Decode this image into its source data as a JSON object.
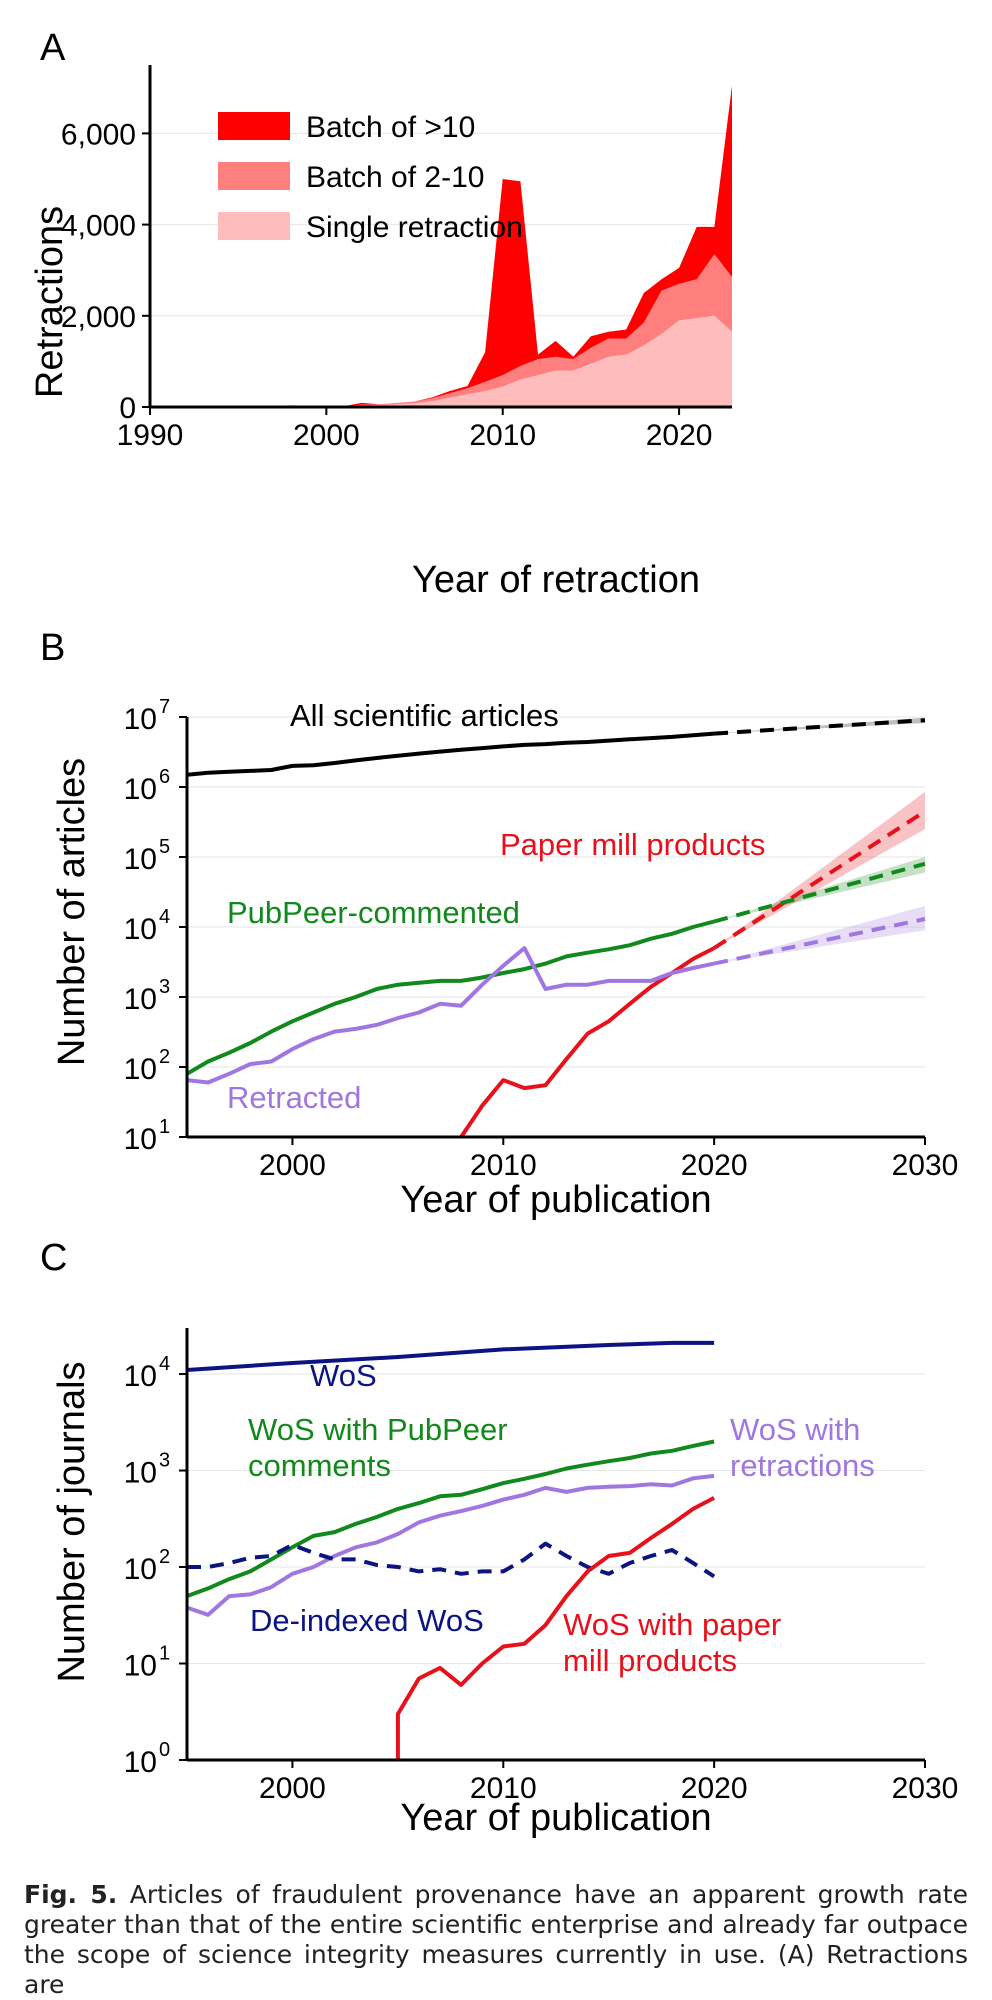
{
  "chart_data": [
    {
      "type": "area",
      "panel_label": "A",
      "stacked": true,
      "xlabel": "Year of retraction",
      "ylabel": "Retractions",
      "xlim": [
        1990,
        2023
      ],
      "ylim": [
        0,
        7500
      ],
      "xticks": [
        1990,
        2000,
        2010,
        2020
      ],
      "xtick_labels": [
        "1990",
        "2000",
        "2010",
        "2020"
      ],
      "yticks": [
        0,
        2000,
        4000,
        6000
      ],
      "ytick_labels": [
        "0",
        "2,000",
        "4,000",
        "6,000"
      ],
      "grid": "horizontal",
      "legend_position": "top-left",
      "x": [
        1990,
        1991,
        1992,
        1993,
        1994,
        1995,
        1996,
        1997,
        1998,
        1999,
        2000,
        2001,
        2002,
        2003,
        2004,
        2005,
        2006,
        2007,
        2008,
        2009,
        2010,
        2011,
        2012,
        2013,
        2014,
        2015,
        2016,
        2017,
        2018,
        2019,
        2020,
        2021,
        2022,
        2023
      ],
      "series": [
        {
          "name": "Single retraction",
          "color": "#ffbcbc",
          "values": [
            5,
            5,
            5,
            5,
            5,
            10,
            10,
            10,
            15,
            10,
            10,
            10,
            30,
            40,
            60,
            80,
            130,
            200,
            280,
            350,
            450,
            600,
            700,
            800,
            800,
            950,
            1100,
            1150,
            1350,
            1600,
            1900,
            1950,
            2000,
            1650
          ]
        },
        {
          "name": "Batch of 2-10",
          "color": "#ff7f7f",
          "values": [
            2,
            2,
            2,
            2,
            2,
            5,
            5,
            5,
            10,
            5,
            5,
            5,
            20,
            20,
            30,
            40,
            60,
            100,
            130,
            200,
            250,
            300,
            350,
            300,
            250,
            350,
            400,
            350,
            500,
            950,
            800,
            850,
            1350,
            1200
          ]
        },
        {
          "name": "Batch of >10",
          "color": "#ff0000",
          "values": [
            0,
            0,
            0,
            0,
            0,
            0,
            0,
            5,
            10,
            5,
            0,
            0,
            40,
            0,
            0,
            0,
            20,
            50,
            50,
            650,
            4300,
            4050,
            100,
            350,
            50,
            250,
            150,
            200,
            650,
            250,
            350,
            1150,
            600,
            4200
          ]
        }
      ]
    },
    {
      "type": "line",
      "panel_label": "B",
      "log_y": true,
      "xlabel": "Year of publication",
      "ylabel": "Number of articles",
      "xlim": [
        1995,
        2030
      ],
      "ylim": [
        10,
        10000000
      ],
      "xticks": [
        2000,
        2010,
        2020,
        2030
      ],
      "xtick_labels": [
        "2000",
        "2010",
        "2020",
        "2030"
      ],
      "ytick_base": "10",
      "ytick_exponents": [
        "1",
        "2",
        "3",
        "4",
        "5",
        "6",
        "7"
      ],
      "grid": "horizontal",
      "series": [
        {
          "name": "All scientific articles",
          "color": "#000000",
          "x": [
            1995,
            1996,
            1997,
            1998,
            1999,
            2000,
            2001,
            2002,
            2003,
            2004,
            2005,
            2006,
            2007,
            2008,
            2009,
            2010,
            2011,
            2012,
            2013,
            2014,
            2015,
            2016,
            2017,
            2018,
            2019,
            2020
          ],
          "values": [
            1500000,
            1600000,
            1650000,
            1700000,
            1750000,
            2000000,
            2050000,
            2200000,
            2400000,
            2600000,
            2800000,
            3000000,
            3200000,
            3400000,
            3600000,
            3800000,
            4000000,
            4100000,
            4300000,
            4400000,
            4600000,
            4800000,
            5000000,
            5200000,
            5500000,
            5800000
          ],
          "projection": {
            "x": [
              2020,
              2030
            ],
            "values": [
              5800000,
              9000000
            ],
            "low": [
              5800000,
              8200000
            ],
            "high": [
              5800000,
              9800000
            ]
          }
        },
        {
          "name": "Paper mill products",
          "color": "#e8101a",
          "x": [
            2008,
            2009,
            2010,
            2011,
            2012,
            2013,
            2014,
            2015,
            2016,
            2017,
            2018,
            2019,
            2020
          ],
          "values": [
            10,
            28,
            65,
            50,
            55,
            130,
            300,
            450,
            800,
            1400,
            2200,
            3500,
            5000
          ],
          "projection": {
            "x": [
              2020,
              2030
            ],
            "values": [
              5000,
              450000
            ],
            "low": [
              5000,
              250000
            ],
            "high": [
              5000,
              850000
            ]
          }
        },
        {
          "name": "PubPeer-commented",
          "color": "#12891c",
          "x": [
            1995,
            1996,
            1997,
            1998,
            1999,
            2000,
            2001,
            2002,
            2003,
            2004,
            2005,
            2006,
            2007,
            2008,
            2009,
            2010,
            2011,
            2012,
            2013,
            2014,
            2015,
            2016,
            2017,
            2018,
            2019,
            2020
          ],
          "values": [
            80,
            120,
            160,
            220,
            320,
            450,
            600,
            800,
            1000,
            1300,
            1500,
            1600,
            1700,
            1700,
            1900,
            2200,
            2500,
            3000,
            3800,
            4300,
            4800,
            5500,
            6800,
            8000,
            10000,
            12000
          ],
          "projection": {
            "x": [
              2020,
              2030
            ],
            "values": [
              12000,
              80000
            ],
            "low": [
              12000,
              60000
            ],
            "high": [
              12000,
              100000
            ]
          }
        },
        {
          "name": "Retracted",
          "color": "#a077e0",
          "x": [
            1995,
            1996,
            1997,
            1998,
            1999,
            2000,
            2001,
            2002,
            2003,
            2004,
            2005,
            2006,
            2007,
            2008,
            2009,
            2010,
            2011,
            2012,
            2013,
            2014,
            2015,
            2016,
            2017,
            2018,
            2019,
            2020
          ],
          "values": [
            65,
            60,
            80,
            110,
            120,
            180,
            250,
            320,
            350,
            400,
            500,
            600,
            800,
            750,
            1500,
            2800,
            5000,
            1300,
            1500,
            1500,
            1700,
            1700,
            1700,
            2200,
            2600,
            3000
          ],
          "projection": {
            "x": [
              2020,
              2030
            ],
            "values": [
              3000,
              13000
            ],
            "low": [
              3000,
              9000
            ],
            "high": [
              3000,
              20000
            ]
          }
        }
      ],
      "annotations": [
        "All scientific articles",
        "Paper mill products",
        "PubPeer-commented",
        "Retracted"
      ]
    },
    {
      "type": "line",
      "panel_label": "C",
      "log_y": true,
      "xlabel": "Year of publication",
      "ylabel": "Number of journals",
      "xlim": [
        1995,
        2030
      ],
      "ylim": [
        1,
        30000
      ],
      "xticks": [
        2000,
        2010,
        2020,
        2030
      ],
      "xtick_labels": [
        "2000",
        "2010",
        "2020",
        "2030"
      ],
      "ytick_base": "10",
      "ytick_exponents": [
        "0",
        "1",
        "2",
        "3",
        "4"
      ],
      "grid": "horizontal",
      "series": [
        {
          "name": "WoS",
          "color": "#0b1480",
          "dash": false,
          "x": [
            1995,
            2000,
            2005,
            2010,
            2015,
            2018,
            2020
          ],
          "values": [
            11000,
            13000,
            15000,
            18000,
            20000,
            21000,
            21000
          ]
        },
        {
          "name": "WoS with PubPeer comments",
          "color": "#12891c",
          "dash": false,
          "x": [
            1995,
            1996,
            1997,
            1998,
            1999,
            2000,
            2001,
            2002,
            2003,
            2004,
            2005,
            2006,
            2007,
            2008,
            2009,
            2010,
            2011,
            2012,
            2013,
            2014,
            2015,
            2016,
            2017,
            2018,
            2019,
            2020
          ],
          "values": [
            50,
            60,
            75,
            90,
            120,
            160,
            210,
            230,
            280,
            330,
            400,
            460,
            540,
            560,
            640,
            740,
            820,
            920,
            1050,
            1150,
            1250,
            1350,
            1500,
            1600,
            1800,
            2000
          ]
        },
        {
          "name": "WoS with retractions",
          "color": "#a077e0",
          "dash": false,
          "x": [
            1995,
            1996,
            1997,
            1998,
            1999,
            2000,
            2001,
            2002,
            2003,
            2004,
            2005,
            2006,
            2007,
            2008,
            2009,
            2010,
            2011,
            2012,
            2013,
            2014,
            2015,
            2016,
            2017,
            2018,
            2019,
            2020
          ],
          "values": [
            38,
            32,
            50,
            52,
            62,
            85,
            100,
            130,
            160,
            180,
            220,
            290,
            340,
            380,
            430,
            500,
            560,
            660,
            600,
            660,
            680,
            690,
            720,
            700,
            830,
            880
          ]
        },
        {
          "name": "De-indexed WoS",
          "color": "#0b1480",
          "dash": true,
          "x": [
            1995,
            1996,
            1997,
            1998,
            1999,
            2000,
            2001,
            2002,
            2003,
            2004,
            2005,
            2006,
            2007,
            2008,
            2009,
            2010,
            2011,
            2012,
            2013,
            2014,
            2015,
            2016,
            2017,
            2018,
            2019,
            2020
          ],
          "values": [
            100,
            100,
            110,
            125,
            130,
            170,
            140,
            120,
            120,
            105,
            100,
            90,
            95,
            85,
            90,
            90,
            120,
            175,
            130,
            100,
            85,
            110,
            130,
            150,
            110,
            80
          ]
        },
        {
          "name": "WoS with paper mill products",
          "color": "#e8101a",
          "dash": false,
          "x": [
            2005,
            2005,
            2006,
            2007,
            2008,
            2009,
            2010,
            2011,
            2012,
            2013,
            2014,
            2015,
            2016,
            2017,
            2018,
            2019,
            2020
          ],
          "values": [
            1,
            3,
            7,
            9,
            6,
            10,
            15,
            16,
            25,
            50,
            90,
            130,
            140,
            200,
            280,
            400,
            520
          ]
        }
      ],
      "annotations": [
        "WoS",
        "WoS with PubPeer comments",
        "WoS with retractions",
        "De-indexed WoS",
        "WoS with paper mill products"
      ]
    }
  ],
  "labels": {
    "a_panel": "A",
    "a_legend": [
      "Batch of >10",
      "Batch of 2-10",
      "Single retraction"
    ],
    "b_panel": "B",
    "b_all": "All scientific articles",
    "b_papermill": "Paper mill products",
    "b_pubpeer": "PubPeer-commented",
    "b_retracted": "Retracted",
    "c_panel": "C",
    "c_wos": "WoS",
    "c_pubpeer_1": "WoS with PubPeer",
    "c_pubpeer_2": "comments",
    "c_retractions_1": "WoS with",
    "c_retractions_2": "retractions",
    "c_deindexed": "De-indexed WoS",
    "c_papermill_1": "WoS with paper",
    "c_papermill_2": "mill products"
  },
  "caption": {
    "label": "Fig. 5.",
    "text": "Articles of fraudulent provenance have an apparent growth rate greater than that of the entire scientific enterprise and already far outpace the scope of science integrity measures currently in use. (A) Retractions are"
  }
}
